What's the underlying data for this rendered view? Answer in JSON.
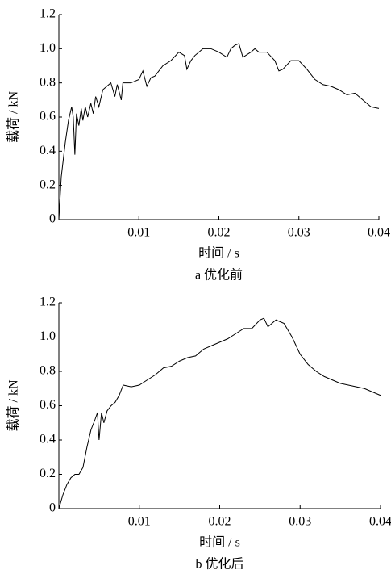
{
  "chart_data": [
    {
      "type": "line",
      "xlabel": "时间 / s",
      "ylabel": "载荷 / kN",
      "caption": "a  优化前",
      "color": "#000000",
      "xlim": [
        0,
        0.04
      ],
      "ylim": [
        0,
        1.2
      ],
      "xticks": [
        0.01,
        0.02,
        0.03,
        0.04
      ],
      "yticks": [
        0,
        0.2,
        0.4,
        0.6,
        0.8,
        {
          "value": 1,
          "label": "1.0"
        },
        1.2
      ],
      "x": [
        0,
        0.0003,
        0.0008,
        0.0012,
        0.0016,
        0.0018,
        0.002,
        0.0022,
        0.0025,
        0.0028,
        0.003,
        0.0033,
        0.0036,
        0.004,
        0.0043,
        0.0046,
        0.005,
        0.0055,
        0.006,
        0.0065,
        0.007,
        0.0073,
        0.0078,
        0.008,
        0.009,
        0.01,
        0.0105,
        0.011,
        0.0115,
        0.012,
        0.013,
        0.014,
        0.015,
        0.0157,
        0.016,
        0.0165,
        0.017,
        0.018,
        0.019,
        0.02,
        0.021,
        0.0215,
        0.022,
        0.0225,
        0.023,
        0.024,
        0.0245,
        0.025,
        0.026,
        0.027,
        0.0275,
        0.028,
        0.029,
        0.03,
        0.031,
        0.032,
        0.033,
        0.034,
        0.035,
        0.036,
        0.037,
        0.038,
        0.039,
        0.04
      ],
      "values": [
        0,
        0.25,
        0.45,
        0.58,
        0.66,
        0.6,
        0.38,
        0.62,
        0.55,
        0.65,
        0.58,
        0.66,
        0.6,
        0.68,
        0.62,
        0.72,
        0.66,
        0.76,
        0.78,
        0.8,
        0.72,
        0.79,
        0.7,
        0.8,
        0.8,
        0.82,
        0.87,
        0.78,
        0.83,
        0.84,
        0.9,
        0.93,
        0.98,
        0.96,
        0.88,
        0.93,
        0.96,
        1.0,
        1.0,
        0.98,
        0.95,
        1.0,
        1.02,
        1.03,
        0.95,
        0.98,
        1.0,
        0.98,
        0.98,
        0.93,
        0.87,
        0.88,
        0.93,
        0.93,
        0.88,
        0.82,
        0.79,
        0.78,
        0.76,
        0.73,
        0.74,
        0.7,
        0.66,
        0.65
      ]
    },
    {
      "type": "line",
      "xlabel": "时间 / s",
      "ylabel": "载荷 / kN",
      "caption": "b  优化后",
      "color": "#000000",
      "xlim": [
        0,
        0.04
      ],
      "ylim": [
        0,
        1.2
      ],
      "xticks": [
        0.01,
        0.02,
        0.03,
        0.04
      ],
      "yticks": [
        0,
        0.2,
        0.4,
        0.6,
        0.8,
        {
          "value": 1,
          "label": "1.0"
        },
        1.2
      ],
      "x": [
        0,
        0.0005,
        0.001,
        0.0015,
        0.002,
        0.0025,
        0.003,
        0.0035,
        0.004,
        0.0045,
        0.0048,
        0.005,
        0.0053,
        0.0056,
        0.006,
        0.0065,
        0.007,
        0.0075,
        0.008,
        0.009,
        0.01,
        0.011,
        0.012,
        0.013,
        0.014,
        0.015,
        0.016,
        0.017,
        0.018,
        0.019,
        0.02,
        0.021,
        0.022,
        0.023,
        0.024,
        0.025,
        0.0255,
        0.026,
        0.027,
        0.028,
        0.029,
        0.03,
        0.031,
        0.032,
        0.033,
        0.034,
        0.035,
        0.036,
        0.037,
        0.038,
        0.039,
        0.04
      ],
      "values": [
        0,
        0.08,
        0.14,
        0.18,
        0.2,
        0.2,
        0.24,
        0.36,
        0.46,
        0.52,
        0.56,
        0.4,
        0.56,
        0.5,
        0.57,
        0.6,
        0.62,
        0.66,
        0.72,
        0.71,
        0.72,
        0.75,
        0.78,
        0.82,
        0.83,
        0.86,
        0.88,
        0.89,
        0.93,
        0.95,
        0.97,
        0.99,
        1.02,
        1.05,
        1.05,
        1.1,
        1.11,
        1.06,
        1.1,
        1.08,
        1.0,
        0.9,
        0.84,
        0.8,
        0.77,
        0.75,
        0.73,
        0.72,
        0.71,
        0.7,
        0.68,
        0.66
      ]
    }
  ]
}
